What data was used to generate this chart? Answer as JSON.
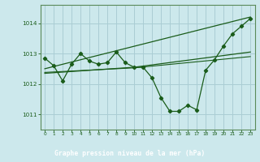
{
  "title": "Graphe pression niveau de la mer (hPa)",
  "background_color": "#cce8ec",
  "grid_color": "#aacdd4",
  "line_color": "#1a5c1a",
  "marker_color": "#1a5c1a",
  "label_bg_color": "#2d6b2d",
  "label_text_color": "#ffffff",
  "xlim": [
    -0.5,
    23.5
  ],
  "ylim": [
    1010.5,
    1014.6
  ],
  "yticks": [
    1011,
    1012,
    1013,
    1014
  ],
  "xticks": [
    0,
    1,
    2,
    3,
    4,
    5,
    6,
    7,
    8,
    9,
    10,
    11,
    12,
    13,
    14,
    15,
    16,
    17,
    18,
    19,
    20,
    21,
    22,
    23
  ],
  "series1_x": [
    0,
    1,
    2,
    3,
    4,
    5,
    6,
    7,
    8,
    9,
    10,
    11,
    12,
    13,
    14,
    15,
    16,
    17,
    18,
    19,
    20,
    21,
    22,
    23
  ],
  "series1_y": [
    1012.85,
    1012.6,
    1012.1,
    1012.65,
    1013.0,
    1012.75,
    1012.65,
    1012.7,
    1013.05,
    1012.7,
    1012.55,
    1012.55,
    1012.2,
    1011.55,
    1011.1,
    1011.1,
    1011.3,
    1011.15,
    1012.45,
    1012.8,
    1013.25,
    1013.65,
    1013.9,
    1014.15
  ],
  "series2_x": [
    0,
    23
  ],
  "series2_y": [
    1012.5,
    1014.2
  ],
  "series3_x": [
    0,
    10,
    23
  ],
  "series3_y": [
    1012.35,
    1012.55,
    1013.05
  ],
  "series4_x": [
    0,
    10,
    23
  ],
  "series4_y": [
    1012.38,
    1012.53,
    1012.9
  ],
  "spine_color": "#5a8a5a",
  "tick_color": "#1a5c1a"
}
